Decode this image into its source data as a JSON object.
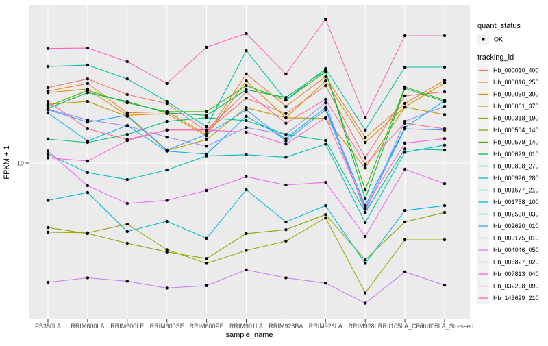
{
  "figure": {
    "background": "#ffffff",
    "panel_background": "#ebebeb",
    "grid_color": "#ffffff",
    "tick_mark_color": "#333333",
    "tick_label_color": "#4d4d4d",
    "point_color": "#000000"
  },
  "axes": {
    "x_title": "sample_name",
    "y_title": "FPKM + 1",
    "y_tick_label": "10",
    "y_scale": "log10"
  },
  "legend": {
    "quant_status_title": "quant_status",
    "quant_status_items": [
      {
        "label": "OK",
        "marker": "point-marker"
      }
    ],
    "tracking_id_title": "tracking_id"
  },
  "chart_data": {
    "type": "line",
    "title": "",
    "xlabel": "sample_name",
    "ylabel": "FPKM + 1",
    "y_scale": "log10",
    "y_break": 10,
    "ylim": [
      1.02,
      100
    ],
    "grid": "major-only",
    "legend_position": "right",
    "categories": [
      "PB350LA",
      "RRIM600LA",
      "RRIM600LE",
      "RRIM600SE",
      "RRIM600PE",
      "RRIM901LA",
      "RRIM928BA",
      "RRIM928LA",
      "RRIM928LE",
      "RRII105LA_Control",
      "RRII105LA_Stressed"
    ],
    "series": [
      {
        "name": "Hb_000010_400",
        "color": "#F8766D",
        "values": [
          30.1,
          34.2,
          27.2,
          23.9,
          15.9,
          25.8,
          20.6,
          31.0,
          10.8,
          26.7,
          28.3
        ]
      },
      {
        "name": "Hb_000016_250",
        "color": "#EA8331",
        "values": [
          28.6,
          32.0,
          20.8,
          21.2,
          15.2,
          36.8,
          22.9,
          35.3,
          14.5,
          23.9,
          33.5
        ]
      },
      {
        "name": "Hb_000030_300",
        "color": "#D89000",
        "values": [
          28.0,
          29.5,
          20.1,
          20.6,
          14.9,
          33.2,
          19.4,
          33.2,
          13.5,
          22.7,
          32.3
        ]
      },
      {
        "name": "Hb_000061_370",
        "color": "#C09B00",
        "values": [
          23.6,
          24.6,
          19.8,
          12.0,
          14.1,
          22.5,
          19.4,
          19.2,
          9.3,
          22.7,
          20.3
        ]
      },
      {
        "name": "Hb_000318_190",
        "color": "#A3A500",
        "values": [
          3.64,
          3.61,
          4.1,
          2.82,
          2.31,
          2.79,
          3.2,
          4.49,
          1.5,
          3.26,
          3.26
        ]
      },
      {
        "name": "Hb_000504_140",
        "color": "#7CAE00",
        "values": [
          3.9,
          3.57,
          3.1,
          2.73,
          2.48,
          3.57,
          3.78,
          4.71,
          2.43,
          4.23,
          4.86
        ]
      },
      {
        "name": "Hb_000579_140",
        "color": "#39B600",
        "values": [
          22.9,
          28.9,
          24.1,
          21.2,
          21.2,
          31.0,
          25.1,
          37.9,
          6.77,
          30.4,
          25.1
        ]
      },
      {
        "name": "Hb_000629_010",
        "color": "#00BB4E",
        "values": [
          22.2,
          28.0,
          24.6,
          20.8,
          20.1,
          29.2,
          26.1,
          38.7,
          5.94,
          29.8,
          24.6
        ]
      },
      {
        "name": "Hb_000808_270",
        "color": "#00C07D",
        "values": [
          14.2,
          13.5,
          15.2,
          18.4,
          19.4,
          18.6,
          15.2,
          13.9,
          4.86,
          12.3,
          12.1
        ]
      },
      {
        "name": "Hb_000926_280",
        "color": "#00C1A3",
        "values": [
          41.0,
          41.9,
          34.2,
          24.6,
          17.0,
          51.6,
          25.1,
          39.8,
          16.2,
          40.6,
          40.6
        ]
      },
      {
        "name": "Hb_001677_210",
        "color": "#00BFC4",
        "values": [
          11.4,
          8.7,
          7.86,
          9.04,
          11.1,
          11.3,
          10.9,
          13.2,
          4.19,
          11.7,
          13.0
        ]
      },
      {
        "name": "Hb_001758_100",
        "color": "#00BAE0",
        "values": [
          5.8,
          6.5,
          3.68,
          4.27,
          3.33,
          6.77,
          4.23,
          5.37,
          2.31,
          5.0,
          5.37
        ]
      },
      {
        "name": "Hb_002530_030",
        "color": "#00B0F6",
        "values": [
          20.8,
          13.8,
          17.3,
          11.9,
          11.4,
          19.8,
          14.3,
          22.5,
          5.37,
          16.8,
          24.9
        ]
      },
      {
        "name": "Hb_002620_010",
        "color": "#35A2FF",
        "values": [
          21.8,
          18.2,
          20.1,
          12.1,
          15.2,
          21.8,
          13.8,
          21.8,
          5.1,
          16.5,
          16.2
        ]
      },
      {
        "name": "Hb_003175_010",
        "color": "#9590FF",
        "values": [
          22.0,
          18.8,
          17.2,
          14.6,
          12.8,
          16.8,
          15.2,
          24.1,
          4.86,
          18.4,
          22.9
        ]
      },
      {
        "name": "Hb_004046_050",
        "color": "#C77CFF",
        "values": [
          1.75,
          1.87,
          1.78,
          1.61,
          1.67,
          2.1,
          1.87,
          1.73,
          1.29,
          2.04,
          1.68
        ]
      },
      {
        "name": "Hb_006827_020",
        "color": "#E76BF3",
        "values": [
          11.9,
          7.19,
          5.54,
          5.8,
          6.7,
          8.2,
          7.26,
          7.55,
          3.43,
          9.14,
          7.4
        ]
      },
      {
        "name": "Hb_007813_040",
        "color": "#FA62DB",
        "values": [
          10.8,
          10.3,
          13.9,
          16.2,
          16.2,
          15.7,
          13.2,
          19.4,
          5.26,
          13.4,
          14.3
        ]
      },
      {
        "name": "Hb_032208_090",
        "color": "#FF62BC",
        "values": [
          53.4,
          53.7,
          44.0,
          32.0,
          54.3,
          66.4,
          36.8,
          81.8,
          19.4,
          64.4,
          64.4
        ]
      },
      {
        "name": "Hb_143629_210",
        "color": "#FF6A98",
        "values": [
          24.6,
          16.5,
          14.1,
          16.2,
          16.2,
          28.3,
          17.9,
          25.4,
          9.8,
          17.9,
          16.5
        ]
      }
    ]
  }
}
